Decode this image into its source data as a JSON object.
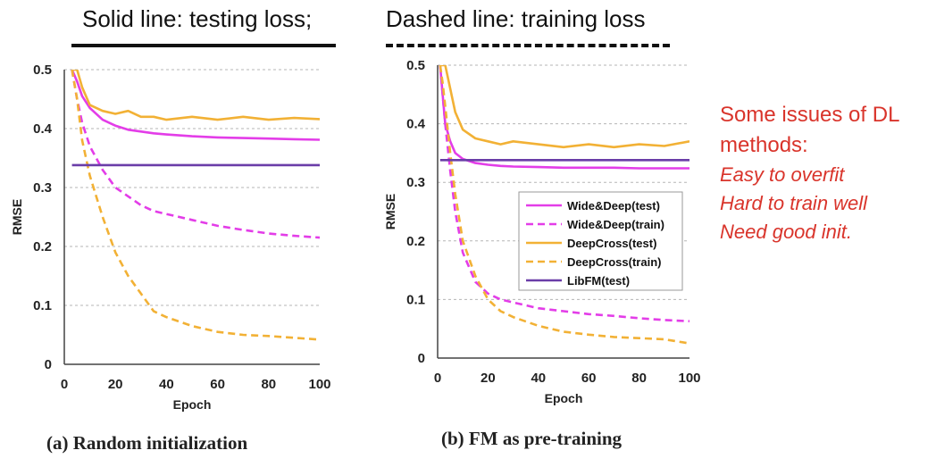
{
  "header": {
    "solid_note": "Solid line: testing loss;",
    "dashed_note": "Dashed line: training loss"
  },
  "side_note": {
    "title_line1": "Some issues of DL",
    "title_line2": "methods:",
    "items": [
      "Easy to overfit",
      "Hard to train well",
      "Need good init."
    ],
    "color": "#d9342b"
  },
  "series_styles": [
    {
      "name": "Wide&Deep(test)",
      "color": "#e33de8",
      "dash": false
    },
    {
      "name": "Wide&Deep(train)",
      "color": "#e33de8",
      "dash": true
    },
    {
      "name": "DeepCross(test)",
      "color": "#f2b135",
      "dash": false
    },
    {
      "name": "DeepCross(train)",
      "color": "#f2b135",
      "dash": true
    },
    {
      "name": "LibFM(test)",
      "color": "#6a3da8",
      "dash": false
    }
  ],
  "chart_data": [
    {
      "type": "line",
      "caption": "(a) Random initialization",
      "xlabel": "Epoch",
      "ylabel": "RMSE",
      "xlim": [
        0,
        100
      ],
      "ylim": [
        0,
        0.5
      ],
      "xticks": [
        0,
        20,
        40,
        60,
        80,
        100
      ],
      "yticks": [
        0,
        0.1,
        0.2,
        0.3,
        0.4,
        0.5
      ],
      "ytick_labels": [
        "0",
        "0.1",
        "0.2",
        "0.3",
        "0.4",
        "0.5"
      ],
      "grid": true,
      "x": [
        3,
        5,
        7,
        10,
        15,
        20,
        25,
        30,
        35,
        40,
        50,
        60,
        70,
        80,
        90,
        100
      ],
      "series": [
        {
          "name": "Wide&Deep(test)",
          "values": [
            0.5,
            0.48,
            0.455,
            0.435,
            0.415,
            0.405,
            0.398,
            0.395,
            0.392,
            0.39,
            0.387,
            0.385,
            0.384,
            0.383,
            0.382,
            0.381
          ]
        },
        {
          "name": "Wide&Deep(train)",
          "values": [
            0.5,
            0.45,
            0.41,
            0.37,
            0.33,
            0.3,
            0.285,
            0.27,
            0.26,
            0.255,
            0.245,
            0.235,
            0.228,
            0.222,
            0.218,
            0.215
          ]
        },
        {
          "name": "DeepCross(test)",
          "values": [
            0.5,
            0.5,
            0.47,
            0.44,
            0.43,
            0.425,
            0.43,
            0.42,
            0.42,
            0.415,
            0.42,
            0.415,
            0.42,
            0.415,
            0.418,
            0.416
          ]
        },
        {
          "name": "DeepCross(train)",
          "values": [
            0.5,
            0.45,
            0.38,
            0.32,
            0.25,
            0.19,
            0.15,
            0.12,
            0.09,
            0.08,
            0.065,
            0.055,
            0.05,
            0.048,
            0.045,
            0.042
          ]
        },
        {
          "name": "LibFM(test)",
          "values": [
            0.338,
            0.338,
            0.338,
            0.338,
            0.338,
            0.338,
            0.338,
            0.338,
            0.338,
            0.338,
            0.338,
            0.338,
            0.338,
            0.338,
            0.338,
            0.338
          ]
        }
      ]
    },
    {
      "type": "line",
      "caption": "(b) FM as pre-training",
      "xlabel": "Epoch",
      "ylabel": "RMSE",
      "xlim": [
        0,
        100
      ],
      "ylim": [
        0,
        0.5
      ],
      "xticks": [
        0,
        20,
        40,
        60,
        80,
        100
      ],
      "yticks": [
        0,
        0.1,
        0.2,
        0.3,
        0.4,
        0.5
      ],
      "ytick_labels": [
        "0",
        "0.1",
        "0.2",
        "0.3",
        "0.4",
        "0.5"
      ],
      "grid": true,
      "legend_position": "right",
      "legend": [
        "Wide&Deep(test)",
        "Wide&Deep(train)",
        "DeepCross(test)",
        "DeepCross(train)",
        "LibFM(test)"
      ],
      "x": [
        1,
        2,
        3,
        5,
        7,
        10,
        15,
        20,
        25,
        30,
        40,
        50,
        60,
        70,
        80,
        90,
        100
      ],
      "series": [
        {
          "name": "Wide&Deep(test)",
          "values": [
            0.5,
            0.45,
            0.4,
            0.37,
            0.35,
            0.34,
            0.333,
            0.33,
            0.328,
            0.327,
            0.326,
            0.325,
            0.325,
            0.325,
            0.324,
            0.324,
            0.324
          ]
        },
        {
          "name": "Wide&Deep(train)",
          "values": [
            0.5,
            0.45,
            0.4,
            0.32,
            0.25,
            0.18,
            0.13,
            0.11,
            0.1,
            0.095,
            0.085,
            0.08,
            0.075,
            0.072,
            0.068,
            0.065,
            0.063
          ]
        },
        {
          "name": "DeepCross(test)",
          "values": [
            0.5,
            0.5,
            0.5,
            0.46,
            0.42,
            0.39,
            0.375,
            0.37,
            0.365,
            0.37,
            0.365,
            0.36,
            0.365,
            0.36,
            0.365,
            0.362,
            0.37
          ]
        },
        {
          "name": "DeepCross(train)",
          "values": [
            0.5,
            0.47,
            0.43,
            0.35,
            0.28,
            0.2,
            0.14,
            0.1,
            0.08,
            0.07,
            0.055,
            0.045,
            0.04,
            0.036,
            0.034,
            0.032,
            0.025
          ]
        },
        {
          "name": "LibFM(test)",
          "values": [
            0.338,
            0.338,
            0.338,
            0.338,
            0.338,
            0.338,
            0.338,
            0.338,
            0.338,
            0.338,
            0.338,
            0.338,
            0.338,
            0.338,
            0.338,
            0.338,
            0.338
          ]
        }
      ]
    }
  ]
}
